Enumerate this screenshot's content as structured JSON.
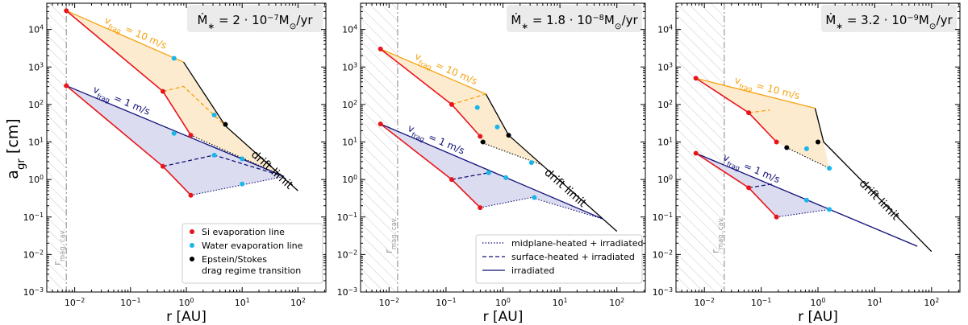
{
  "shared": {
    "xlabel": "r [AU]",
    "ylabel_main": "a",
    "ylabel_sub": "gr",
    "ylabel_unit": " [cm]",
    "xlim_log10": [
      -2.5,
      2.5
    ],
    "ylim_log10": [
      -3,
      4.7
    ],
    "xticks": [
      {
        "v": -2,
        "label": "10",
        "exp": "−2"
      },
      {
        "v": -1,
        "label": "10",
        "exp": "−1"
      },
      {
        "v": 0,
        "label": "10",
        "exp": "0"
      },
      {
        "v": 1,
        "label": "10",
        "exp": "1"
      },
      {
        "v": 2,
        "label": "10",
        "exp": "2"
      }
    ],
    "yticks": [
      {
        "v": -3,
        "label": "10",
        "exp": "−3"
      },
      {
        "v": -2,
        "label": "10",
        "exp": "−2"
      },
      {
        "v": -1,
        "label": "10",
        "exp": "−1"
      },
      {
        "v": 0,
        "label": "10",
        "exp": "0"
      },
      {
        "v": 1,
        "label": "10",
        "exp": "1"
      },
      {
        "v": 2,
        "label": "10",
        "exp": "2"
      },
      {
        "v": 3,
        "label": "10",
        "exp": "3"
      },
      {
        "v": 4,
        "label": "10",
        "exp": "4"
      }
    ],
    "vfrag10_label": "v",
    "vfrag10_value": " = 10 m/s",
    "vfrag1_label": "v",
    "vfrag1_value": " = 1 m/s",
    "vfrag_sub": "frag",
    "drift_label": "drift limit",
    "magcav_main": "r",
    "magcav_sub": "mag. cav.",
    "colors": {
      "red": "#e8141a",
      "orange": "#f5a20f",
      "navy": "#12127a",
      "cyan": "#19b6ea",
      "black": "#000000",
      "orange_fill": "#fdebd0",
      "blue_fill": "#dcdcf0"
    }
  },
  "legend_points": {
    "items": [
      {
        "label": "Si evaporation line",
        "color": "#e8141a"
      },
      {
        "label": "Water evaporation line",
        "color": "#19b6ea"
      },
      {
        "label": "Epstein/Stokes",
        "label2": "drag regime transition",
        "color": "#000000"
      }
    ]
  },
  "legend_lines": {
    "items": [
      {
        "label": "midplane-heated + irradiated",
        "style": "dotted"
      },
      {
        "label": "surface-heated + irradiated",
        "style": "dashed"
      },
      {
        "label": "irradiated",
        "style": "solid"
      }
    ]
  },
  "chart_data": [
    {
      "type": "line",
      "title_prefix": "Ṁ",
      "title_sub": "∗",
      "title_value": " = 2 · 10",
      "title_exp": "−7",
      "title_unit": "M",
      "title_unit_sub": "⊙",
      "title_tail": "/yr",
      "mag_cavity_log10": -2.15,
      "vfrag10": {
        "red": [
          [
            -2.15,
            4.5
          ],
          [
            -0.42,
            2.35
          ],
          [
            0.08,
            1.18
          ]
        ],
        "irradiated": [
          [
            -2.15,
            4.5
          ],
          [
            -0.05,
            3.13
          ],
          [
            0.7,
            1.43
          ],
          [
            2.0,
            -0.3
          ]
        ],
        "surface": [
          [
            -0.42,
            2.35
          ],
          [
            -0.05,
            2.48
          ],
          [
            0.7,
            1.43
          ]
        ],
        "midplane": [
          [
            0.08,
            1.18
          ],
          [
            1.75,
            0.08
          ]
        ],
        "si": [
          [
            -2.15,
            4.5
          ],
          [
            -0.42,
            2.35
          ],
          [
            0.08,
            1.18
          ]
        ],
        "water": [
          [
            -0.22,
            3.23
          ],
          [
            0.5,
            1.72
          ]
        ],
        "drag": [
          [
            0.7,
            1.47
          ]
        ]
      },
      "vfrag1": {
        "red": [
          [
            -2.15,
            2.5
          ],
          [
            -0.42,
            0.35
          ],
          [
            0.08,
            -0.42
          ]
        ],
        "irradiated": [
          [
            -2.15,
            2.5
          ],
          [
            1.75,
            0.08
          ]
        ],
        "surface": [
          [
            -0.42,
            0.35
          ],
          [
            0.5,
            0.65
          ],
          [
            1.75,
            0.08
          ]
        ],
        "midplane": [
          [
            0.08,
            -0.42
          ],
          [
            1.75,
            0.08
          ]
        ],
        "si": [
          [
            -2.15,
            2.5
          ],
          [
            -0.42,
            0.35
          ],
          [
            0.08,
            -0.42
          ]
        ],
        "water": [
          [
            -0.22,
            1.23
          ],
          [
            0.5,
            0.65
          ],
          [
            1.0,
            0.55
          ],
          [
            1.0,
            -0.12
          ]
        ],
        "drag": []
      }
    },
    {
      "type": "line",
      "title_prefix": "Ṁ",
      "title_sub": "∗",
      "title_value": " = 1.8 · 10",
      "title_exp": "−8",
      "title_unit": "M",
      "title_unit_sub": "⊙",
      "title_tail": "/yr",
      "mag_cavity_log10": -1.85,
      "vfrag10": {
        "red": [
          [
            -2.15,
            3.48
          ],
          [
            -0.9,
            2.0
          ],
          [
            -0.4,
            1.15
          ]
        ],
        "irradiated": [
          [
            -2.15,
            3.48
          ],
          [
            -0.3,
            2.28
          ],
          [
            0.1,
            1.18
          ],
          [
            2.0,
            -1.38
          ]
        ],
        "surface": [
          [
            -0.9,
            2.0
          ],
          [
            -0.3,
            2.28
          ]
        ],
        "midplane": [
          [
            -0.4,
            1.0
          ],
          [
            0.7,
            0.38
          ]
        ],
        "si": [
          [
            -2.15,
            3.48
          ],
          [
            -0.9,
            2.0
          ],
          [
            -0.4,
            1.15
          ]
        ],
        "water": [
          [
            -0.45,
            1.92
          ],
          [
            -0.1,
            1.4
          ],
          [
            0.5,
            0.45
          ]
        ],
        "drag": [
          [
            -0.35,
            1.0
          ],
          [
            0.1,
            1.18
          ]
        ]
      },
      "vfrag1": {
        "red": [
          [
            -2.15,
            1.48
          ],
          [
            -0.9,
            0.0
          ],
          [
            -0.4,
            -0.75
          ]
        ],
        "irradiated": [
          [
            -2.15,
            1.48
          ],
          [
            1.75,
            -1.05
          ]
        ],
        "surface": [
          [
            -0.9,
            0.0
          ],
          [
            -0.25,
            0.18
          ]
        ],
        "midplane": [
          [
            -0.4,
            -0.75
          ],
          [
            0.5,
            -0.48
          ],
          [
            1.75,
            -1.05
          ]
        ],
        "si": [
          [
            -2.15,
            1.48
          ],
          [
            -0.9,
            0.0
          ],
          [
            -0.4,
            -0.75
          ]
        ],
        "water": [
          [
            -0.25,
            0.18
          ],
          [
            0.05,
            0.05
          ],
          [
            0.55,
            -0.48
          ]
        ],
        "drag": []
      }
    },
    {
      "type": "line",
      "title_prefix": "Ṁ",
      "title_sub": "∗",
      "title_value": " = 3.2 · 10",
      "title_exp": "−9",
      "title_unit": "M",
      "title_unit_sub": "⊙",
      "title_tail": "/yr",
      "mag_cavity_log10": -1.65,
      "vfrag10": {
        "red": [
          [
            -2.15,
            2.7
          ],
          [
            -1.22,
            1.78
          ],
          [
            -0.73,
            1.0
          ]
        ],
        "irradiated": [
          [
            -2.15,
            2.7
          ],
          [
            -0.05,
            1.9
          ],
          [
            0.1,
            1.0
          ],
          [
            2.0,
            -1.92
          ]
        ],
        "surface": [
          [
            -1.22,
            1.78
          ],
          [
            -0.85,
            1.85
          ]
        ],
        "midplane": [
          [
            -0.55,
            0.85
          ],
          [
            0.2,
            0.3
          ]
        ],
        "si": [
          [
            -2.15,
            2.7
          ],
          [
            -1.22,
            1.78
          ],
          [
            -0.73,
            1.0
          ]
        ],
        "water": [
          [
            -0.2,
            0.82
          ],
          [
            0.2,
            0.3
          ]
        ],
        "drag": [
          [
            -0.55,
            0.85
          ],
          [
            0.0,
            1.0
          ]
        ]
      },
      "vfrag1": {
        "red": [
          [
            -2.15,
            0.7
          ],
          [
            -1.22,
            -0.22
          ],
          [
            -0.73,
            -1.0
          ]
        ],
        "irradiated": [
          [
            -2.15,
            0.7
          ],
          [
            1.75,
            -1.78
          ]
        ],
        "surface": [
          [
            -1.22,
            -0.22
          ],
          [
            -0.8,
            -0.12
          ]
        ],
        "midplane": [
          [
            -0.73,
            -1.0
          ],
          [
            0.2,
            -0.8
          ],
          [
            1.75,
            -1.78
          ]
        ],
        "si": [
          [
            -2.15,
            0.7
          ],
          [
            -1.22,
            -0.22
          ],
          [
            -0.73,
            -1.0
          ]
        ],
        "water": [
          [
            -0.2,
            -0.55
          ],
          [
            0.2,
            -0.8
          ]
        ],
        "drag": []
      }
    }
  ]
}
